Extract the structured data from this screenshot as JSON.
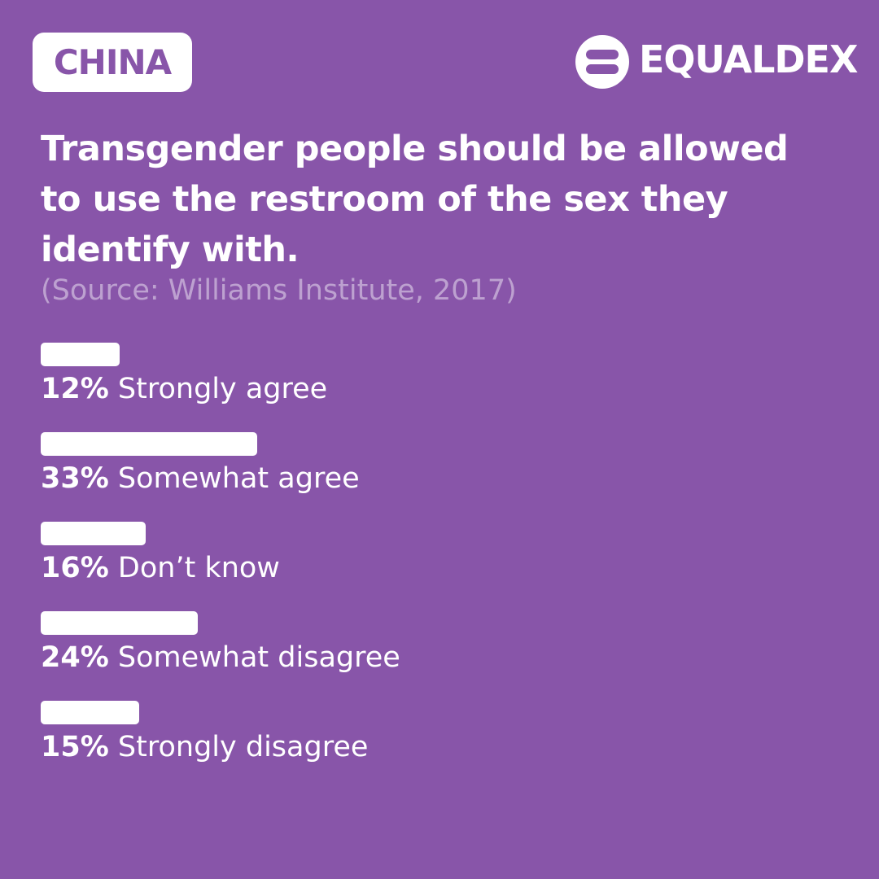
{
  "chart_data": {
    "type": "bar",
    "badge": "CHINA",
    "brand": "EQUALDEX",
    "title": "Transgender people should be allowed to use the restroom of the sex they identify with.",
    "subtitle": "(Source: Williams Institute, 2017)",
    "categories": [
      "Strongly agree",
      "Somewhat agree",
      "Don’t know",
      "Somewhat disagree",
      "Strongly disagree"
    ],
    "values": [
      12,
      33,
      16,
      24,
      15
    ],
    "value_labels": [
      "12%",
      "33%",
      "16%",
      "24%",
      "15%"
    ],
    "color": "#ffffff"
  }
}
